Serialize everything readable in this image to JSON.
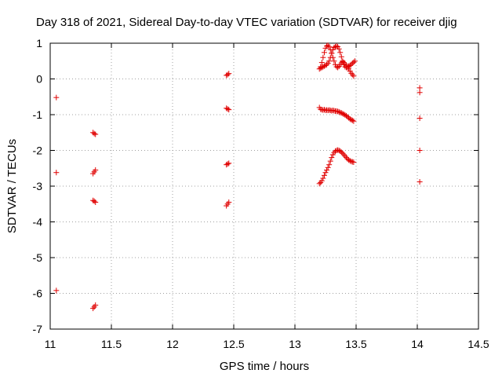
{
  "chart_data": {
    "type": "scatter",
    "title": "Day 318 of 2021, Sidereal Day-to-day VTEC variation (SDTVAR) for receiver djig",
    "xlabel": "GPS time / hours",
    "ylabel": "SDTVAR / TECUs",
    "xlim": [
      11,
      14.5
    ],
    "ylim": [
      -7,
      1
    ],
    "xticks": [
      "11",
      "11.5",
      "12",
      "12.5",
      "13",
      "13.5",
      "14",
      "14.5"
    ],
    "yticks": [
      "-7",
      "-6",
      "-5",
      "-4",
      "-3",
      "-2",
      "-1",
      "0",
      "1"
    ],
    "grid": true,
    "marker": "+",
    "color": "#e00000",
    "series": [
      {
        "name": "SDTVAR",
        "points": [
          [
            11.05,
            -0.52
          ],
          [
            11.05,
            -2.62
          ],
          [
            11.05,
            -5.92
          ],
          [
            11.35,
            -1.5
          ],
          [
            11.36,
            -1.53
          ],
          [
            11.37,
            -1.55
          ],
          [
            11.35,
            -2.65
          ],
          [
            11.36,
            -2.6
          ],
          [
            11.37,
            -2.55
          ],
          [
            11.35,
            -3.4
          ],
          [
            11.36,
            -3.42
          ],
          [
            11.37,
            -3.45
          ],
          [
            11.35,
            -6.42
          ],
          [
            11.36,
            -6.38
          ],
          [
            11.37,
            -6.33
          ],
          [
            12.44,
            0.1
          ],
          [
            12.45,
            0.12
          ],
          [
            12.46,
            0.15
          ],
          [
            12.44,
            -0.82
          ],
          [
            12.45,
            -0.84
          ],
          [
            12.46,
            -0.86
          ],
          [
            12.44,
            -2.4
          ],
          [
            12.45,
            -2.38
          ],
          [
            12.46,
            -2.36
          ],
          [
            12.44,
            -3.55
          ],
          [
            12.45,
            -3.5
          ],
          [
            12.46,
            -3.45
          ],
          [
            13.2,
            0.28
          ],
          [
            13.21,
            0.34
          ],
          [
            13.22,
            0.46
          ],
          [
            13.23,
            0.6
          ],
          [
            13.24,
            0.74
          ],
          [
            13.25,
            0.86
          ],
          [
            13.26,
            0.92
          ],
          [
            13.27,
            0.94
          ],
          [
            13.28,
            0.9
          ],
          [
            13.29,
            0.82
          ],
          [
            13.3,
            0.72
          ],
          [
            13.31,
            0.6
          ],
          [
            13.32,
            0.5
          ],
          [
            13.33,
            0.4
          ],
          [
            13.34,
            0.34
          ],
          [
            13.35,
            0.32
          ],
          [
            13.36,
            0.35
          ],
          [
            13.37,
            0.4
          ],
          [
            13.38,
            0.45
          ],
          [
            13.39,
            0.48
          ],
          [
            13.4,
            0.46
          ],
          [
            13.41,
            0.42
          ],
          [
            13.42,
            0.37
          ],
          [
            13.43,
            0.32
          ],
          [
            13.44,
            0.28
          ],
          [
            13.45,
            0.22
          ],
          [
            13.46,
            0.16
          ],
          [
            13.47,
            0.12
          ],
          [
            13.48,
            0.08
          ],
          [
            13.21,
            0.3
          ],
          [
            13.22,
            0.32
          ],
          [
            13.23,
            0.34
          ],
          [
            13.24,
            0.36
          ],
          [
            13.25,
            0.38
          ],
          [
            13.26,
            0.4
          ],
          [
            13.27,
            0.44
          ],
          [
            13.28,
            0.5
          ],
          [
            13.29,
            0.6
          ],
          [
            13.3,
            0.72
          ],
          [
            13.31,
            0.82
          ],
          [
            13.32,
            0.88
          ],
          [
            13.33,
            0.9
          ],
          [
            13.34,
            0.92
          ],
          [
            13.35,
            0.9
          ],
          [
            13.36,
            0.84
          ],
          [
            13.37,
            0.74
          ],
          [
            13.38,
            0.62
          ],
          [
            13.39,
            0.5
          ],
          [
            13.4,
            0.4
          ],
          [
            13.41,
            0.34
          ],
          [
            13.42,
            0.32
          ],
          [
            13.43,
            0.34
          ],
          [
            13.44,
            0.36
          ],
          [
            13.45,
            0.38
          ],
          [
            13.46,
            0.4
          ],
          [
            13.47,
            0.44
          ],
          [
            13.48,
            0.47
          ],
          [
            13.49,
            0.5
          ],
          [
            13.2,
            -0.8
          ],
          [
            13.21,
            -0.85
          ],
          [
            13.22,
            -0.86
          ],
          [
            13.23,
            -0.87
          ],
          [
            13.24,
            -0.86
          ],
          [
            13.25,
            -0.88
          ],
          [
            13.26,
            -0.87
          ],
          [
            13.27,
            -0.88
          ],
          [
            13.28,
            -0.87
          ],
          [
            13.29,
            -0.88
          ],
          [
            13.3,
            -0.89
          ],
          [
            13.31,
            -0.88
          ],
          [
            13.32,
            -0.89
          ],
          [
            13.33,
            -0.9
          ],
          [
            13.34,
            -0.9
          ],
          [
            13.35,
            -0.91
          ],
          [
            13.36,
            -0.92
          ],
          [
            13.37,
            -0.94
          ],
          [
            13.38,
            -0.95
          ],
          [
            13.39,
            -0.97
          ],
          [
            13.4,
            -0.99
          ],
          [
            13.41,
            -1.01
          ],
          [
            13.42,
            -1.03
          ],
          [
            13.43,
            -1.06
          ],
          [
            13.44,
            -1.09
          ],
          [
            13.45,
            -1.12
          ],
          [
            13.46,
            -1.14
          ],
          [
            13.47,
            -1.16
          ],
          [
            13.48,
            -1.18
          ],
          [
            13.2,
            -2.93
          ],
          [
            13.21,
            -2.9
          ],
          [
            13.22,
            -2.85
          ],
          [
            13.23,
            -2.78
          ],
          [
            13.24,
            -2.7
          ],
          [
            13.25,
            -2.62
          ],
          [
            13.26,
            -2.55
          ],
          [
            13.27,
            -2.48
          ],
          [
            13.28,
            -2.4
          ],
          [
            13.29,
            -2.3
          ],
          [
            13.3,
            -2.2
          ],
          [
            13.31,
            -2.12
          ],
          [
            13.32,
            -2.06
          ],
          [
            13.33,
            -2.02
          ],
          [
            13.34,
            -2.0
          ],
          [
            13.35,
            -1.99
          ],
          [
            13.36,
            -2.0
          ],
          [
            13.37,
            -2.02
          ],
          [
            13.38,
            -2.05
          ],
          [
            13.39,
            -2.08
          ],
          [
            13.4,
            -2.12
          ],
          [
            13.41,
            -2.16
          ],
          [
            13.42,
            -2.2
          ],
          [
            13.43,
            -2.24
          ],
          [
            13.44,
            -2.27
          ],
          [
            13.45,
            -2.29
          ],
          [
            13.46,
            -2.31
          ],
          [
            13.47,
            -2.32
          ],
          [
            13.48,
            -2.33
          ],
          [
            14.02,
            -0.25
          ],
          [
            14.02,
            -0.38
          ],
          [
            14.02,
            -1.1
          ],
          [
            14.02,
            -2.0
          ],
          [
            14.02,
            -2.88
          ]
        ]
      }
    ]
  }
}
